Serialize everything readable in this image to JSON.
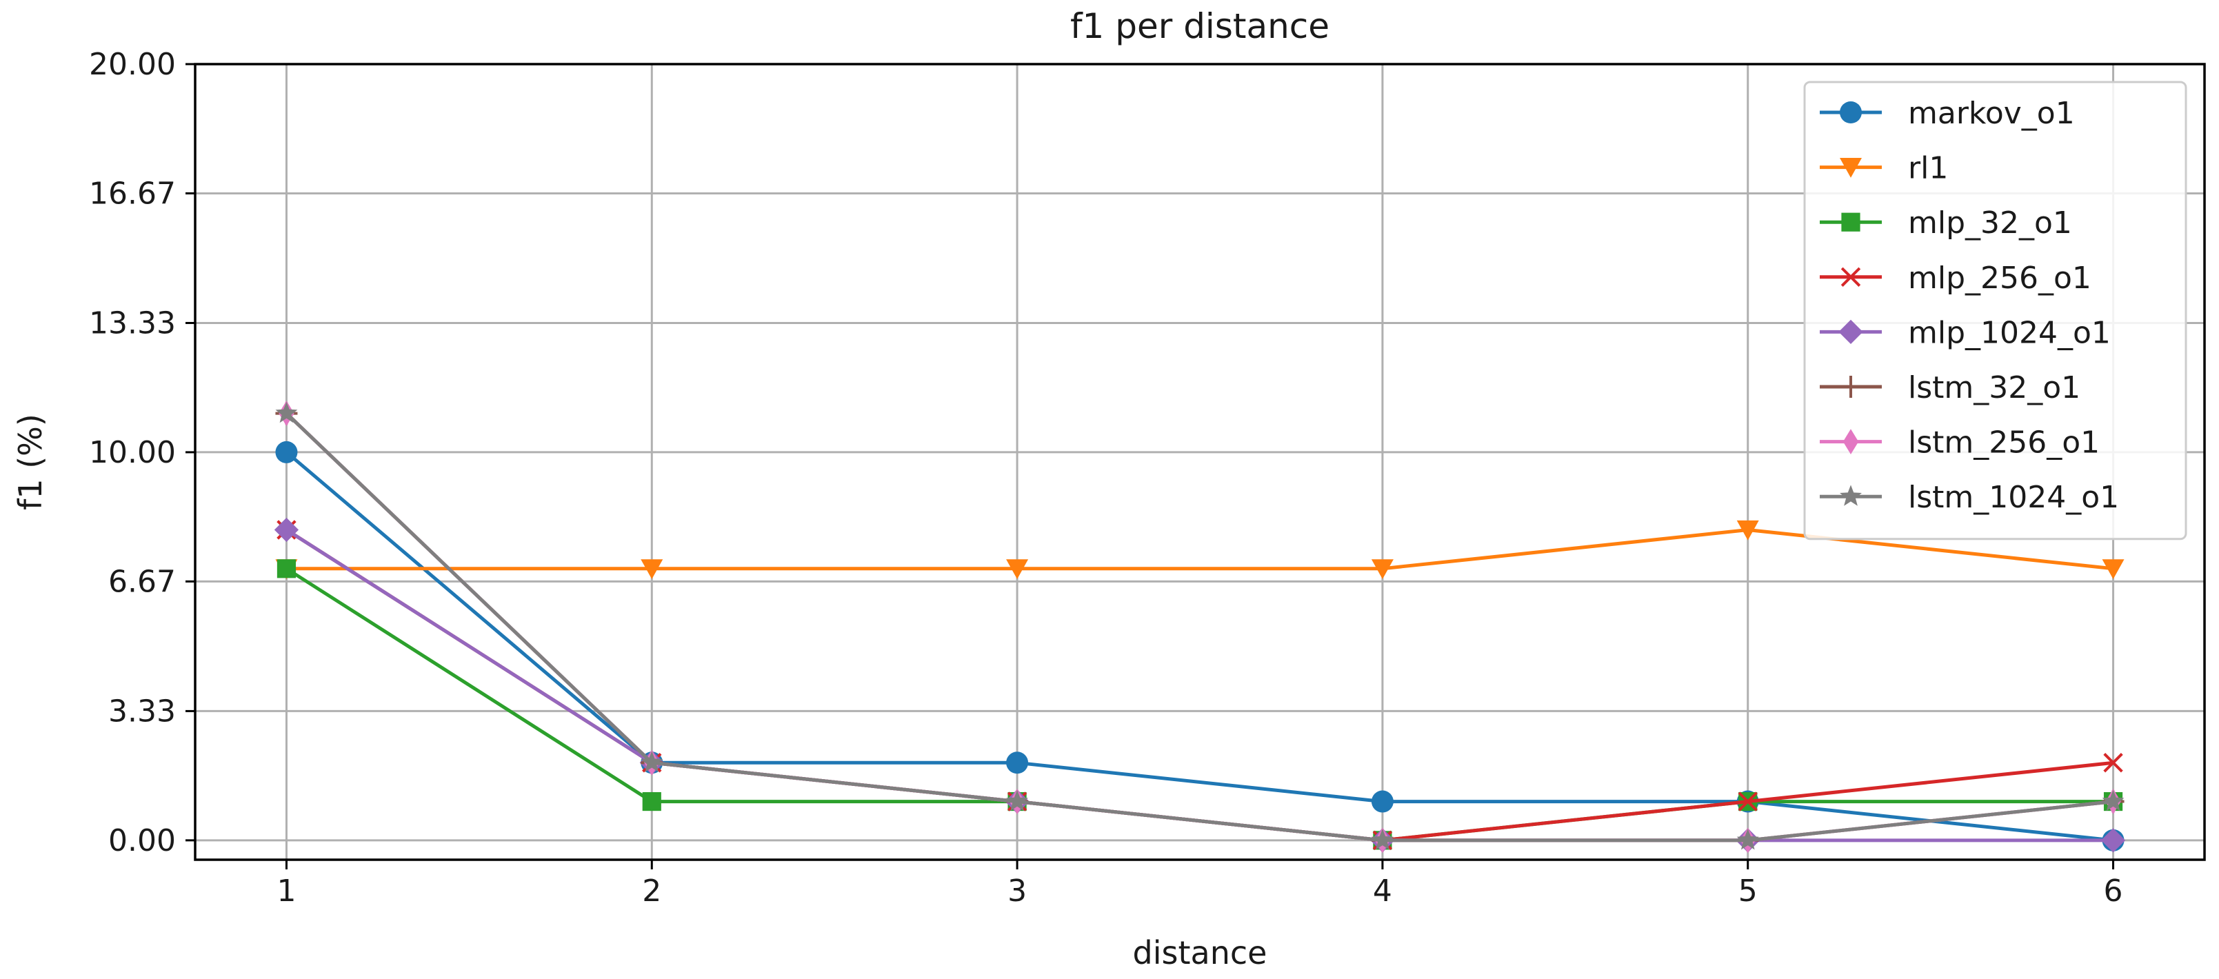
{
  "chart_data": {
    "type": "line",
    "title": "f1 per distance",
    "xlabel": "distance",
    "ylabel": "f1 (%)",
    "x": [
      1,
      2,
      3,
      4,
      5,
      6
    ],
    "xticks": [
      "1",
      "2",
      "3",
      "4",
      "5",
      "6"
    ],
    "xlim": [
      0.75,
      6.25
    ],
    "yticks": [
      "0.00",
      "3.33",
      "6.67",
      "10.00",
      "13.33",
      "16.67",
      "20.00"
    ],
    "ylim": [
      -0.5,
      20
    ],
    "grid": true,
    "legend_position": "top-right",
    "series": [
      {
        "name": "markov_o1",
        "color": "#1f77b4",
        "marker": "circle",
        "values": [
          10.0,
          2.0,
          2.0,
          1.0,
          1.0,
          0.0
        ]
      },
      {
        "name": "rl1",
        "color": "#ff7f0e",
        "marker": "triangle-down",
        "values": [
          7.0,
          7.0,
          7.0,
          7.0,
          8.0,
          7.0
        ]
      },
      {
        "name": "mlp_32_o1",
        "color": "#2ca02c",
        "marker": "square",
        "values": [
          7.0,
          1.0,
          1.0,
          0.0,
          1.0,
          1.0
        ]
      },
      {
        "name": "mlp_256_o1",
        "color": "#d62728",
        "marker": "x",
        "values": [
          8.0,
          2.0,
          1.0,
          0.0,
          1.0,
          2.0
        ]
      },
      {
        "name": "mlp_1024_o1",
        "color": "#9467bd",
        "marker": "diamond",
        "values": [
          8.0,
          2.0,
          1.0,
          0.0,
          0.0,
          0.0
        ]
      },
      {
        "name": "lstm_32_o1",
        "color": "#8c564b",
        "marker": "plus",
        "values": [
          11.0,
          2.0,
          1.0,
          0.0,
          0.0,
          1.0
        ]
      },
      {
        "name": "lstm_256_o1",
        "color": "#e377c2",
        "marker": "thin-diamond",
        "values": [
          11.0,
          2.0,
          1.0,
          0.0,
          0.0,
          1.0
        ]
      },
      {
        "name": "lstm_1024_o1",
        "color": "#7f7f7f",
        "marker": "star",
        "values": [
          11.0,
          2.0,
          1.0,
          0.0,
          0.0,
          1.0
        ]
      }
    ]
  }
}
